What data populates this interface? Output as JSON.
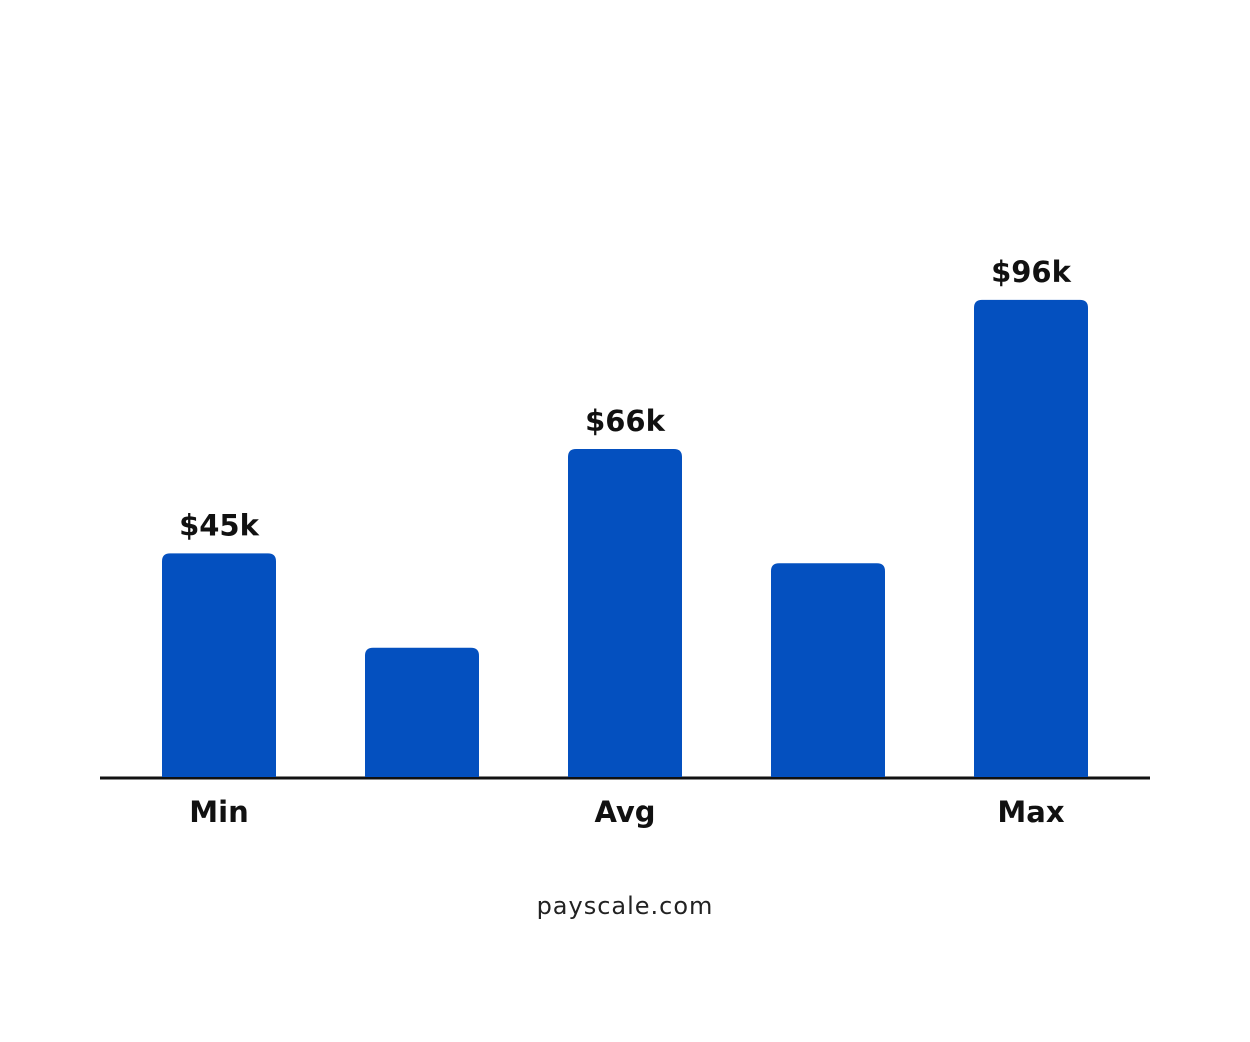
{
  "chart_data": {
    "type": "bar",
    "categories": [
      "Min",
      null,
      "Avg",
      null,
      "Max"
    ],
    "values": [
      45,
      26,
      66,
      43,
      96
    ],
    "value_labels": [
      "$45k",
      null,
      "$66k",
      null,
      "$96k"
    ],
    "color": "#0450bf",
    "ylim": [
      0,
      100
    ],
    "source": "payscale.com"
  }
}
